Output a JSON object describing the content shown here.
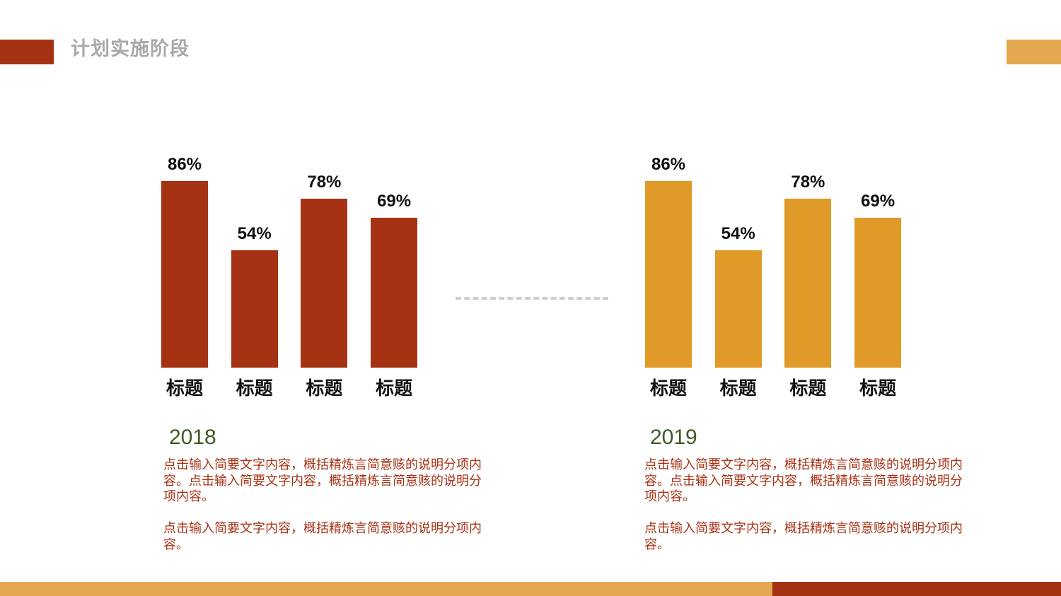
{
  "page": {
    "title": "计划实施阶段",
    "colors": {
      "dark": "#a63214",
      "light": "#e3a850",
      "year": "#3d5a24",
      "divider": "#cfcfcf"
    }
  },
  "chart_data": [
    {
      "type": "bar",
      "categories": [
        "标题",
        "标题",
        "标题",
        "标题"
      ],
      "values": [
        86,
        54,
        78,
        69
      ],
      "value_labels": [
        "86%",
        "54%",
        "78%",
        "69%"
      ],
      "ylim": [
        0,
        100
      ],
      "color": "#a63214",
      "xlabel": "",
      "ylabel": "",
      "title": ""
    },
    {
      "type": "bar",
      "categories": [
        "标题",
        "标题",
        "标题",
        "标题"
      ],
      "values": [
        86,
        54,
        78,
        69
      ],
      "value_labels": [
        "86%",
        "54%",
        "78%",
        "69%"
      ],
      "ylim": [
        0,
        100
      ],
      "color": "#e09a28",
      "xlabel": "",
      "ylabel": "",
      "title": ""
    }
  ],
  "sections": [
    {
      "year": "2018",
      "paragraph1": "点击输入简要文字内容，概括精炼言简意赅的说明分项内容。点击输入简要文字内容，概括精炼言简意赅的说明分项内容。",
      "paragraph2": "点击输入简要文字内容，概括精炼言简意赅的说明分项内容。"
    },
    {
      "year": "2019",
      "paragraph1": "点击输入简要文字内容，概括精炼言简意赅的说明分项内容。点击输入简要文字内容，概括精炼言简意赅的说明分项内容。",
      "paragraph2": "点击输入简要文字内容，概括精炼言简意赅的说明分项内容。"
    }
  ]
}
